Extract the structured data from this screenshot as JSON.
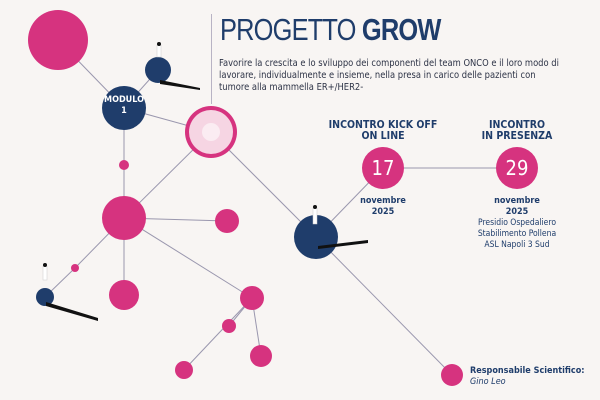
{
  "colors": {
    "pink": "#d6337f",
    "navy": "#1f3d6b",
    "background": "#f8f5f3",
    "line": "#9a97ae"
  },
  "header": {
    "title_light": "PROGETTO",
    "title_bold": "GROW",
    "description": "Favorire la crescita e lo sviluppo dei componenti del team ONCO e il loro modo di lavorare, individualmente e insieme, nella presa in carico delle pazienti con tumore alla mammella ER+/HER2-"
  },
  "module": {
    "line1": "MODULO",
    "line2": "1"
  },
  "events": [
    {
      "title1": "INCONTRO KICK OFF",
      "title2": "ON LINE",
      "day": "17",
      "month": "novembre",
      "year": "2025"
    },
    {
      "title1": "INCONTRO",
      "title2": "IN PRESENZA",
      "day": "29",
      "month": "novembre",
      "year": "2025",
      "place": [
        "Presidio Ospedaliero",
        "Stabilimento Pollena",
        "ASL Napoli 3 Sud"
      ]
    }
  ],
  "responsible": {
    "label": "Responsabile Scientifico:",
    "name": "Gino Leo"
  }
}
